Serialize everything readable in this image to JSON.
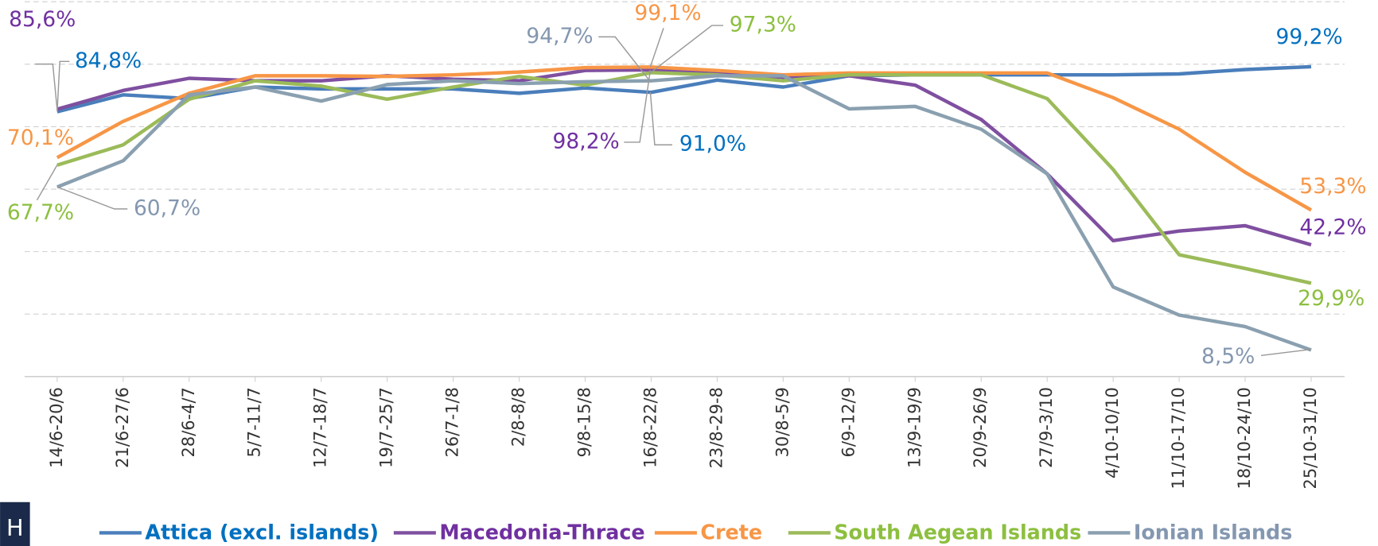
{
  "chart_data": {
    "type": "line",
    "categories": [
      "14/6-20/6",
      "21/6-27/6",
      "28/6-4/7",
      "5/7-11/7",
      "12/7-18/7",
      "19/7-25/7",
      "26/7-1/8",
      "2/8-8/8",
      "9/8-15/8",
      "16/8-22/8",
      "23/8-29-8",
      "30/8-5/9",
      "6/9-12/9",
      "13/9-19/9",
      "20/9-26/9",
      "27/9-3/10",
      "4/10-10/10",
      "11/10-17/10",
      "18/10-24/10",
      "25/10-31/10"
    ],
    "ylim": [
      0,
      120
    ],
    "yticks": [
      0,
      20,
      40,
      60,
      80,
      100,
      120
    ],
    "grid": true,
    "legend": "bottom",
    "logo_text": "H",
    "series": [
      {
        "name": "Attica (excl. islands)",
        "color": "#4a7ebb",
        "label_color": "#0070c0",
        "values": [
          84.8,
          90.2,
          89.0,
          92.7,
          92.1,
          92.1,
          92.1,
          90.7,
          92.4,
          91.0,
          94.9,
          92.7,
          96.3,
          96.6,
          96.6,
          96.6,
          96.6,
          96.9,
          98.3,
          99.2
        ],
        "value_labels": [
          "84,8%",
          null,
          null,
          null,
          null,
          null,
          null,
          null,
          null,
          "91,0%",
          null,
          null,
          null,
          null,
          null,
          null,
          null,
          null,
          null,
          "99,2%"
        ]
      },
      {
        "name": "Macedonia-Thrace",
        "color": "#7f4fa0",
        "label_color": "#7030a0",
        "values": [
          85.6,
          91.6,
          95.5,
          94.7,
          94.7,
          96.3,
          95.2,
          94.7,
          98.0,
          98.2,
          97.2,
          95.8,
          96.3,
          93.3,
          82.3,
          64.9,
          43.5,
          46.6,
          48.3,
          42.2
        ],
        "value_labels": [
          "85,6%",
          null,
          null,
          null,
          null,
          null,
          null,
          null,
          null,
          "98,2%",
          null,
          null,
          null,
          null,
          null,
          null,
          null,
          null,
          null,
          "42,2%"
        ]
      },
      {
        "name": "Crete",
        "color": "#f79646",
        "label_color": "#f79646",
        "values": [
          70.1,
          81.7,
          90.7,
          96.3,
          96.3,
          96.1,
          96.6,
          97.5,
          98.9,
          99.1,
          98.0,
          96.6,
          97.2,
          97.2,
          97.2,
          97.2,
          89.3,
          79.2,
          65.4,
          53.3
        ],
        "value_labels": [
          "70,1%",
          null,
          null,
          null,
          null,
          null,
          null,
          null,
          null,
          "99,1%",
          null,
          null,
          null,
          null,
          null,
          null,
          null,
          null,
          null,
          "53,3%"
        ]
      },
      {
        "name": "South Aegean Islands",
        "color": "#9bbb59",
        "label_color": "#8cbf3f",
        "values": [
          67.7,
          74.2,
          88.8,
          94.7,
          93.0,
          88.8,
          92.7,
          96.1,
          93.3,
          97.3,
          96.6,
          94.7,
          96.6,
          96.6,
          96.6,
          89.0,
          66.3,
          39.0,
          34.6,
          29.9
        ],
        "value_labels": [
          "67,7%",
          null,
          null,
          null,
          null,
          null,
          null,
          null,
          null,
          "97,3%",
          null,
          null,
          null,
          null,
          null,
          null,
          null,
          null,
          null,
          "29,9%"
        ]
      },
      {
        "name": "Ionian Islands",
        "color": "#8aa0b0",
        "label_color": "#8497b0",
        "values": [
          60.7,
          69.1,
          90.2,
          92.7,
          88.2,
          93.5,
          94.7,
          93.8,
          94.4,
          94.7,
          96.3,
          96.3,
          85.7,
          86.5,
          79.2,
          64.9,
          28.7,
          19.7,
          16.0,
          8.5
        ],
        "value_labels": [
          "60,7%",
          null,
          null,
          null,
          null,
          null,
          null,
          null,
          null,
          "94,7%",
          null,
          null,
          null,
          null,
          null,
          null,
          null,
          null,
          null,
          "8,5%"
        ]
      }
    ]
  }
}
